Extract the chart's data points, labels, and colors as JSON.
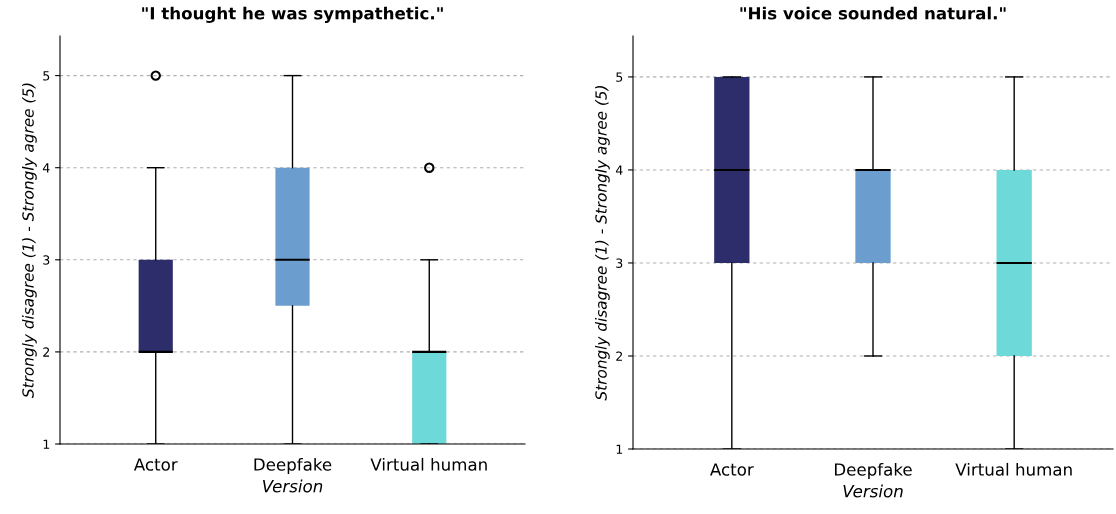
{
  "chart_data": [
    {
      "type": "box",
      "title": "\"I thought he was sympathetic.\"",
      "xlabel": "Version",
      "ylabel": "Strongly disagree (1) - Strongly agree (5)",
      "categories": [
        "Actor",
        "Deepfake",
        "Virtual human"
      ],
      "colors": [
        "#2e2d6b",
        "#6b9ecf",
        "#6dd9d9"
      ],
      "boxes": [
        {
          "low": 1,
          "q1": 2,
          "median": 2,
          "q3": 3,
          "high": 4,
          "outliers": [
            5
          ]
        },
        {
          "low": 1,
          "q1": 2.5,
          "median": 3,
          "q3": 4,
          "high": 5
        },
        {
          "low": 1,
          "q1": 1,
          "median": 2,
          "q3": 2,
          "high": 3,
          "outliers": [
            4
          ]
        }
      ],
      "ylim": [
        1,
        5.43
      ],
      "yticks": [
        1,
        2,
        3,
        4,
        5
      ],
      "grid": "y"
    },
    {
      "type": "box",
      "title": "\"His voice sounded natural.\"",
      "xlabel": "Version",
      "ylabel": "Strongly disagree (1) - Strongly agree (5)",
      "categories": [
        "Actor",
        "Deepfake",
        "Virtual human"
      ],
      "colors": [
        "#2e2d6b",
        "#6b9ecf",
        "#6dd9d9"
      ],
      "boxes": [
        {
          "low": 1,
          "q1": 3,
          "median": 4,
          "q3": 5,
          "high": 5
        },
        {
          "low": 2,
          "q1": 3,
          "median": 4,
          "q3": 4,
          "high": 5
        },
        {
          "low": 1,
          "q1": 2,
          "median": 3,
          "q3": 4,
          "high": 5
        }
      ],
      "ylim": [
        1,
        5.44
      ],
      "yticks": [
        1,
        2,
        3,
        4,
        5
      ],
      "grid": "y"
    }
  ]
}
